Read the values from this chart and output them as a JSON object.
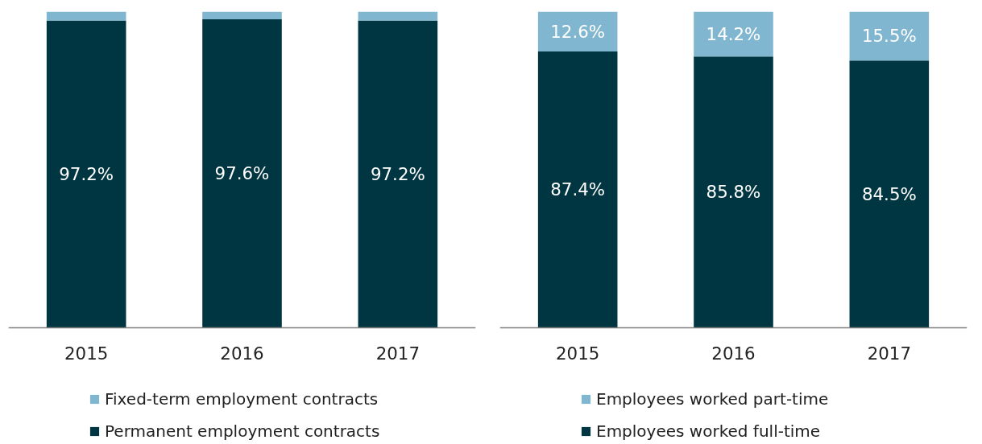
{
  "chart_data": [
    {
      "type": "bar",
      "stacked": true,
      "categories": [
        "2015",
        "2016",
        "2017"
      ],
      "legend": "bottom",
      "tick_labels": "x",
      "series": [
        {
          "name": "Permanent employment contracts",
          "color": "#003641",
          "values": [
            97.2,
            97.6,
            97.2
          ],
          "value_labels": [
            "97.2%",
            "97.6%",
            "97.2%"
          ]
        },
        {
          "name": "Fixed-term employment contracts",
          "color": "#80b6cf",
          "values": [
            2.8,
            2.4,
            2.8
          ],
          "value_labels": [
            null,
            null,
            null
          ]
        }
      ]
    },
    {
      "type": "bar",
      "stacked": true,
      "categories": [
        "2015",
        "2016",
        "2017"
      ],
      "legend": "bottom",
      "tick_labels": "x",
      "series": [
        {
          "name": "Employees worked full-time",
          "color": "#003641",
          "values": [
            87.4,
            85.8,
            84.5
          ],
          "value_labels": [
            "87.4%",
            "85.8%",
            "84.5%"
          ]
        },
        {
          "name": "Employees worked part-time",
          "color": "#80b6cf",
          "values": [
            12.6,
            14.2,
            15.5
          ],
          "value_labels": [
            "12.6%",
            "14.2%",
            "15.5%"
          ]
        }
      ]
    }
  ]
}
